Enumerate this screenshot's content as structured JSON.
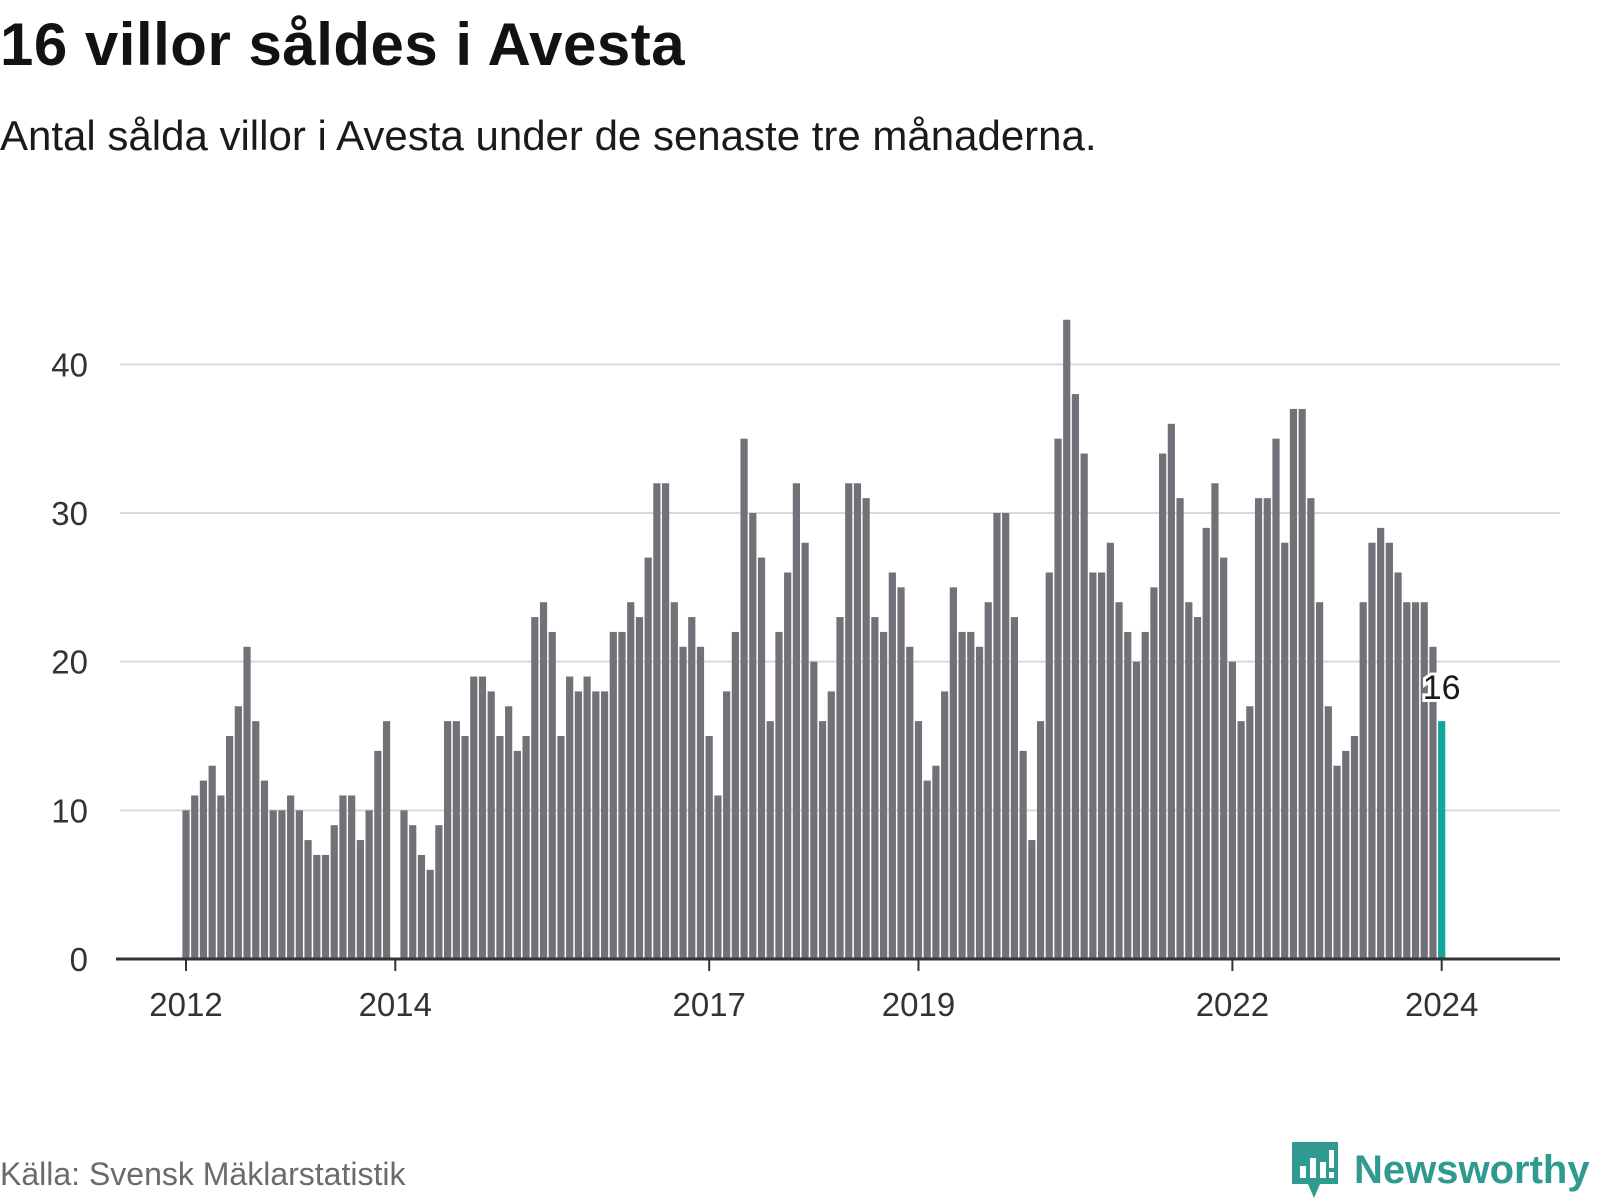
{
  "title": "16 villor såldes i Avesta",
  "subtitle": "Antal sålda villor i Avesta under de senaste tre månaderna.",
  "source": "Källa: Svensk Mäklarstatistik",
  "brand": "Newsworthy",
  "colors": {
    "bar": "#727178",
    "highlight": "#13a59a",
    "grid": "#d9d9d9",
    "axis": "#333333",
    "brand": "#2f9a8f"
  },
  "chart_data": {
    "type": "bar",
    "title": "16 villor såldes i Avesta",
    "xlabel": "",
    "ylabel": "",
    "ylim": [
      0,
      45
    ],
    "yticks": [
      0,
      10,
      20,
      30,
      40
    ],
    "grid": true,
    "start": "2012-01",
    "frequency": "monthly",
    "values": [
      10,
      11,
      12,
      13,
      11,
      15,
      17,
      21,
      16,
      12,
      10,
      10,
      11,
      10,
      8,
      7,
      7,
      9,
      11,
      11,
      8,
      10,
      14,
      16,
      null,
      10,
      9,
      7,
      6,
      9,
      16,
      16,
      15,
      19,
      19,
      18,
      15,
      17,
      14,
      15,
      23,
      24,
      22,
      15,
      19,
      18,
      19,
      18,
      18,
      22,
      22,
      24,
      23,
      27,
      32,
      32,
      24,
      21,
      23,
      21,
      15,
      11,
      18,
      22,
      35,
      30,
      27,
      16,
      22,
      26,
      32,
      28,
      20,
      16,
      18,
      23,
      32,
      32,
      31,
      23,
      22,
      26,
      25,
      21,
      16,
      12,
      13,
      18,
      25,
      22,
      22,
      21,
      24,
      30,
      30,
      23,
      14,
      8,
      16,
      26,
      35,
      43,
      38,
      34,
      26,
      26,
      28,
      24,
      22,
      20,
      22,
      25,
      34,
      36,
      31,
      24,
      23,
      29,
      32,
      27,
      20,
      16,
      17,
      31,
      31,
      35,
      28,
      37,
      37,
      31,
      24,
      17,
      13,
      14,
      15,
      24,
      28,
      29,
      28,
      26,
      24,
      24,
      24,
      21,
      16
    ],
    "x_ticks": [
      {
        "label": "2012",
        "index": 0
      },
      {
        "label": "2014",
        "index": 24
      },
      {
        "label": "2017",
        "index": 60
      },
      {
        "label": "2019",
        "index": 84
      },
      {
        "label": "2022",
        "index": 120
      },
      {
        "label": "2024",
        "index": 144
      }
    ],
    "highlight_index": 144,
    "highlight_label": "16"
  }
}
